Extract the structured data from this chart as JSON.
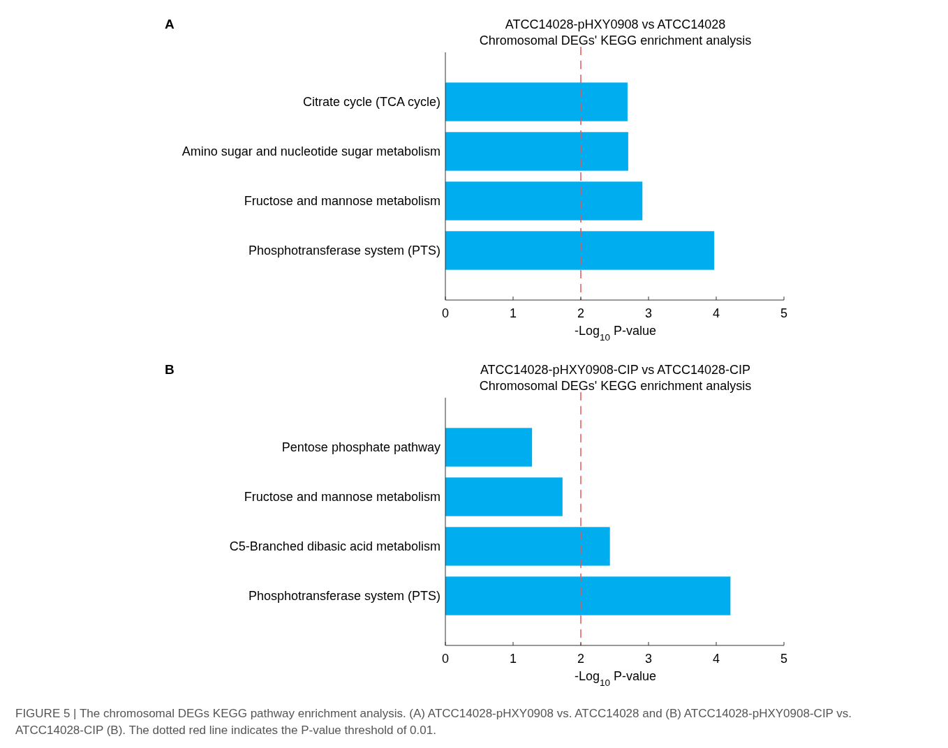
{
  "chart_data": [
    {
      "type": "bar",
      "orientation": "horizontal",
      "title": "ATCC14028-pHXY0908 vs ATCC14028",
      "subtitle": "Chromosomal DEGs' KEGG enrichment analysis",
      "xlabel": "-Log$_{10}$ P-value",
      "categories": [
        "Citrate cycle (TCA cycle)",
        "Amino sugar and nucleotide sugar metabolism",
        "Fructose and mannose metabolism",
        "Phosphotransferase system (PTS)"
      ],
      "values": [
        2.69,
        2.7,
        2.91,
        3.97
      ],
      "color": "#00aeef",
      "xlim": [
        0,
        5
      ],
      "xticks": [
        0,
        1,
        2,
        3,
        4,
        5
      ],
      "ref_lines": [
        {
          "axis": "x",
          "value": 2,
          "color": "#e8545a",
          "line_style": "dashed"
        }
      ],
      "annotations": [
        "A"
      ]
    },
    {
      "type": "bar",
      "orientation": "horizontal",
      "title": "ATCC14028-pHXY0908-CIP vs ATCC14028-CIP",
      "subtitle": "Chromosomal DEGs' KEGG enrichment analysis",
      "xlabel": "-Log$_{10}$ P-value",
      "categories": [
        "Pentose phosphate pathway",
        "Fructose and mannose metabolism",
        "C5-Branched dibasic acid metabolism",
        "Phosphotransferase system (PTS)"
      ],
      "values": [
        1.28,
        1.73,
        2.43,
        4.21
      ],
      "color": "#00aeef",
      "xlim": [
        0,
        5
      ],
      "xticks": [
        0,
        1,
        2,
        3,
        4,
        5
      ],
      "ref_lines": [
        {
          "axis": "x",
          "value": 2,
          "color": "#e8545a",
          "line_style": "dashed"
        }
      ],
      "annotations": [
        "B",
        "FIGURE 5 | The chromosomal DEGs KEGG pathway enrichment analysis. (A) ATCC14028-pHXY0908 vs. ATCC14028 and (B) ATCC14028-pHXY0908-CIP vs. ATCC14028-CIP (B). The dotted red line indicates the P-value threshold of 0.01."
      ]
    }
  ]
}
